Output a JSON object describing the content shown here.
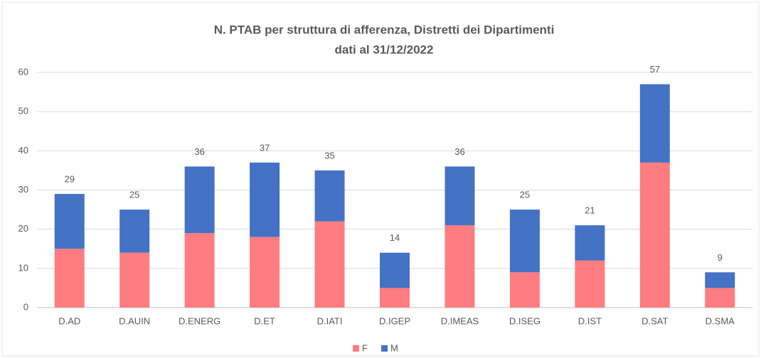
{
  "chart_data": {
    "type": "stacked_bar",
    "title": "N. PTAB per struttura di afferenza, Distretti dei Dipartimenti",
    "subtitle": "dati al 31/12/2022",
    "categories": [
      "D.AD",
      "D.AUIN",
      "D.ENERG",
      "D.ET",
      "D.IATI",
      "D.IGEP",
      "D.IMEAS",
      "D.ISEG",
      "D.IST",
      "D.SAT",
      "D.SMA"
    ],
    "series": [
      {
        "name": "F",
        "color": "#ff7c80",
        "values": [
          15,
          14,
          19,
          18,
          22,
          5,
          21,
          9,
          12,
          37,
          5
        ]
      },
      {
        "name": "M",
        "color": "#4472c4",
        "values": [
          14,
          11,
          17,
          19,
          13,
          9,
          15,
          16,
          9,
          20,
          4
        ]
      }
    ],
    "totals": [
      29,
      25,
      36,
      37,
      35,
      14,
      36,
      25,
      21,
      57,
      9
    ],
    "ylim": [
      0,
      60
    ],
    "yticks": [
      0,
      10,
      20,
      30,
      40,
      50,
      60
    ],
    "grid": true,
    "legend": "bottom"
  }
}
